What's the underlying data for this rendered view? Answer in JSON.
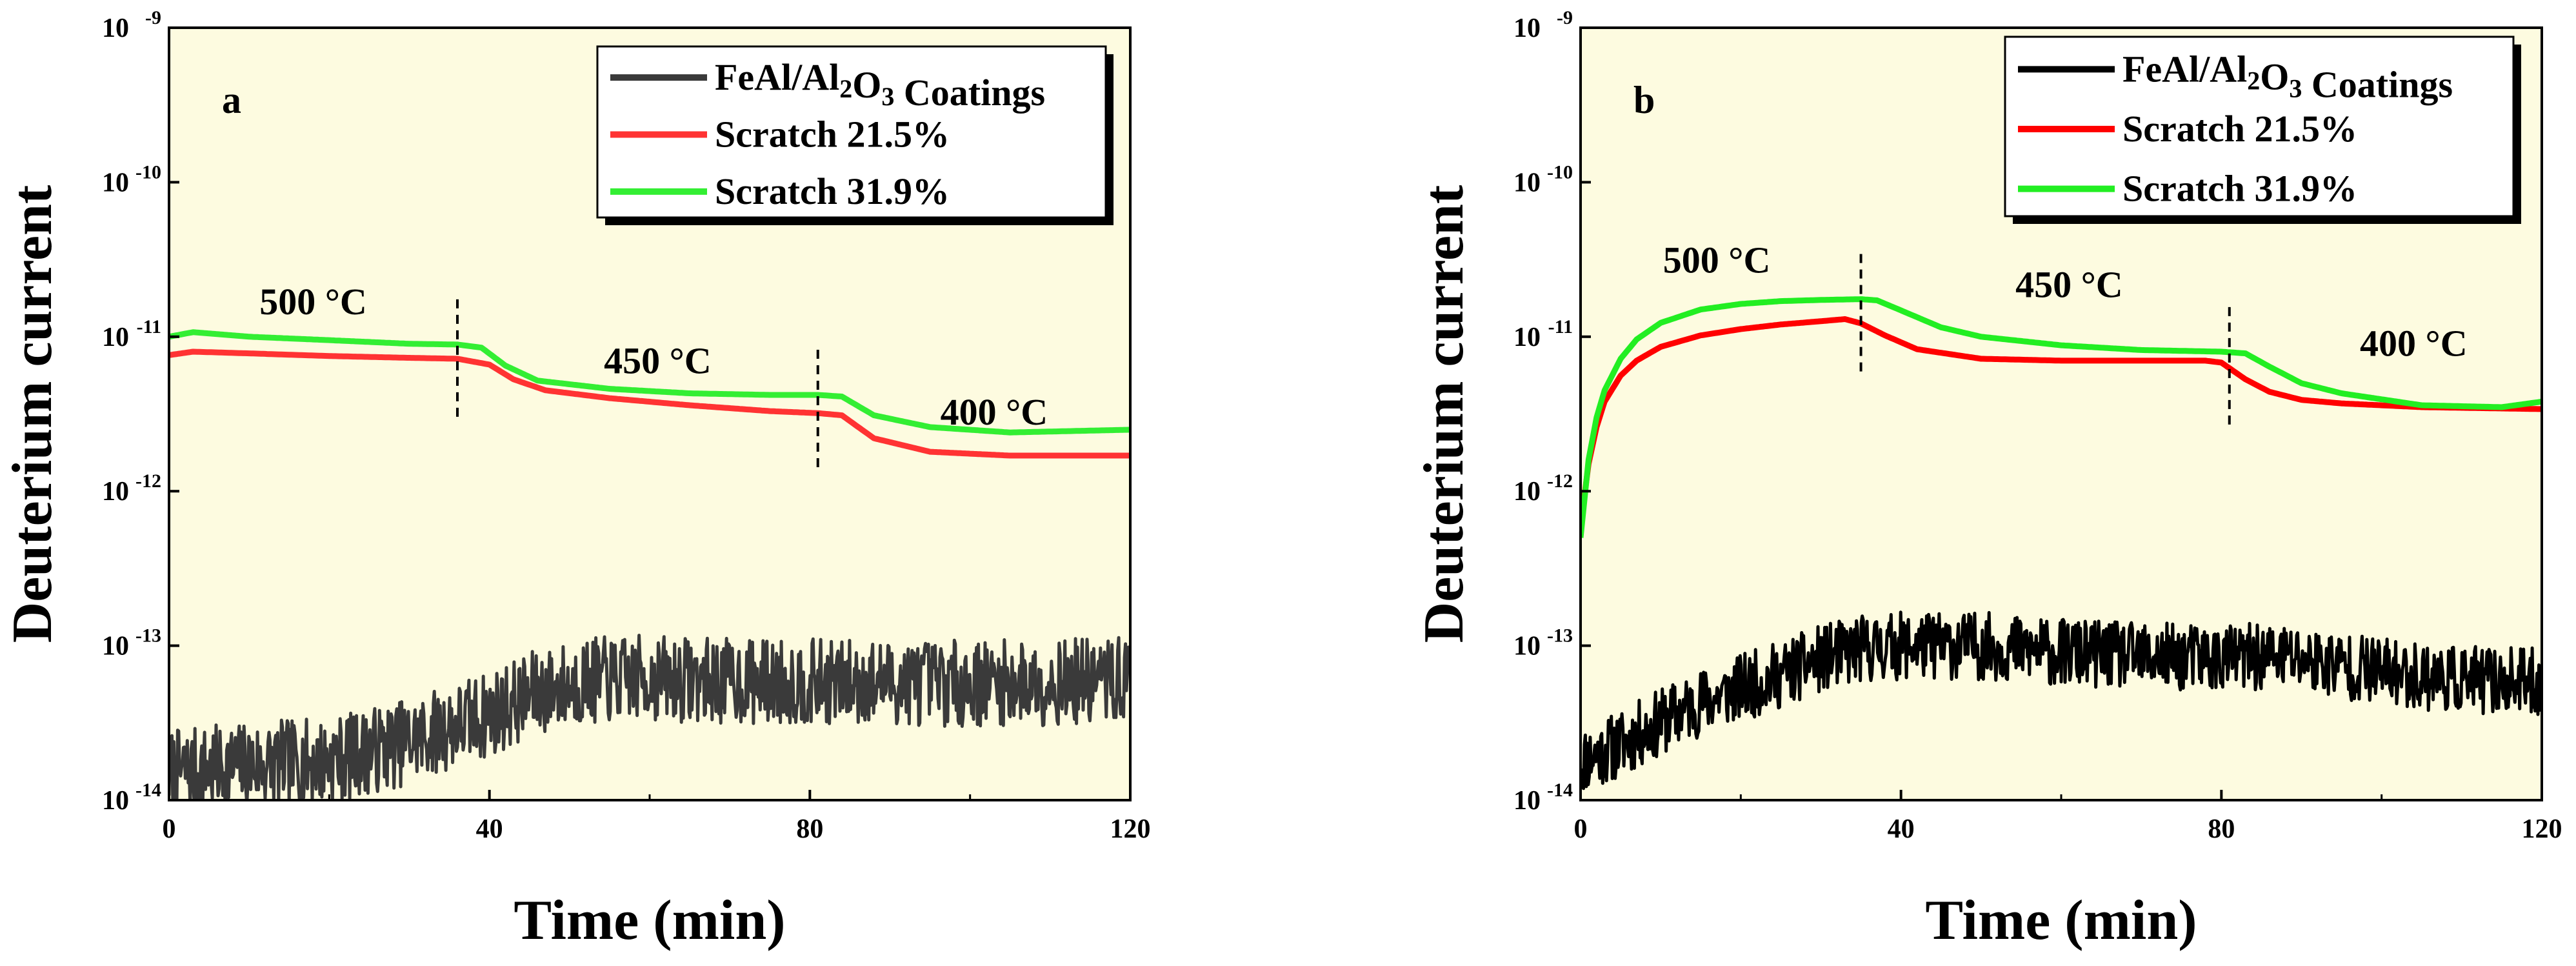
{
  "chart_data": [
    {
      "type": "line",
      "panel": "a",
      "xlabel": "Time (min)",
      "ylabel": "Deuterium current",
      "xlim": [
        0,
        120
      ],
      "ylim": [
        1e-14,
        1e-09
      ],
      "yscale": "log",
      "xticks": [
        "0",
        "40",
        "80",
        "120"
      ],
      "yticks": [
        {
          "base": "10",
          "exp": "-14"
        },
        {
          "base": "10",
          "exp": "-13"
        },
        {
          "base": "10",
          "exp": "-12"
        },
        {
          "base": "10",
          "exp": "-11"
        },
        {
          "base": "10",
          "exp": "-10"
        },
        {
          "base": "10",
          "exp": "-9"
        }
      ],
      "legend_position": "top-right",
      "legend": [
        {
          "name": "FeAl/Al2O3 Coatings",
          "color": "#3a3a3a"
        },
        {
          "name": "Scratch 21.5%",
          "color": "#ff3333"
        },
        {
          "name": "Scratch 31.9%",
          "color": "#33ee33"
        }
      ],
      "annotations": [
        {
          "text": "500 °C",
          "x": 18,
          "y": 1.4e-11
        },
        {
          "text": "450 °C",
          "x": 61,
          "y": 5.8e-12
        },
        {
          "text": "400 °C",
          "x": 103,
          "y": 2.7e-12
        }
      ],
      "dividers": [
        36,
        81
      ],
      "series": [
        {
          "name": "FeAl/Al2O3 Coatings",
          "color": "#3a3a3a",
          "noise": 0.28,
          "seed": 7,
          "x": [
            0,
            10,
            20,
            30,
            36,
            40,
            46,
            52,
            60,
            70,
            80,
            90,
            100,
            110,
            120
          ],
          "y": [
            1.5e-14,
            1.7e-14,
            1.8e-14,
            2.4e-14,
            3.1e-14,
            3.6e-14,
            5e-14,
            5.9e-14,
            6.2e-14,
            5.9e-14,
            5.8e-14,
            5.8e-14,
            5.7e-14,
            5.8e-14,
            6e-14
          ]
        },
        {
          "name": "Scratch 21.5%",
          "color": "#ff3333",
          "noise": 0,
          "seed": 1,
          "x": [
            0,
            3,
            10,
            20,
            30,
            36,
            40,
            43,
            47,
            55,
            65,
            75,
            81,
            84,
            88,
            95,
            105,
            120
          ],
          "y": [
            7.6e-12,
            8e-12,
            7.8e-12,
            7.5e-12,
            7.3e-12,
            7.2e-12,
            6.6e-12,
            5.3e-12,
            4.5e-12,
            4e-12,
            3.6e-12,
            3.3e-12,
            3.2e-12,
            3.1e-12,
            2.2e-12,
            1.8e-12,
            1.7e-12,
            1.7e-12
          ]
        },
        {
          "name": "Scratch 31.9%",
          "color": "#33ee33",
          "noise": 0,
          "seed": 2,
          "x": [
            0,
            3,
            10,
            20,
            30,
            36,
            39,
            42,
            46,
            55,
            65,
            75,
            81,
            84,
            88,
            95,
            105,
            120
          ],
          "y": [
            1e-11,
            1.07e-11,
            1e-11,
            9.5e-12,
            9e-12,
            8.9e-12,
            8.5e-12,
            6.5e-12,
            5.2e-12,
            4.6e-12,
            4.3e-12,
            4.2e-12,
            4.2e-12,
            4.1e-12,
            3.1e-12,
            2.6e-12,
            2.4e-12,
            2.5e-12
          ]
        }
      ]
    },
    {
      "type": "line",
      "panel": "b",
      "xlabel": "Time (min)",
      "ylabel": "Deuterium current",
      "xlim": [
        0,
        120
      ],
      "ylim": [
        1e-14,
        1e-09
      ],
      "yscale": "log",
      "xticks": [
        "0",
        "40",
        "80",
        "120"
      ],
      "yticks": [
        {
          "base": "10",
          "exp": "-14"
        },
        {
          "base": "10",
          "exp": "-13"
        },
        {
          "base": "10",
          "exp": "-12"
        },
        {
          "base": "10",
          "exp": "-11"
        },
        {
          "base": "10",
          "exp": "-10"
        },
        {
          "base": "10",
          "exp": "-9"
        }
      ],
      "legend_position": "top-right",
      "legend": [
        {
          "name": "FeAl/Al2O3 Coatings",
          "color": "#000000"
        },
        {
          "name": "Scratch 21.5%",
          "color": "#ff0000"
        },
        {
          "name": "Scratch 31.9%",
          "color": "#22ee22"
        }
      ],
      "annotations": [
        {
          "text": "500 °C",
          "x": 17,
          "y": 2.6e-11
        },
        {
          "text": "450 °C",
          "x": 61,
          "y": 1.8e-11
        },
        {
          "text": "400 °C",
          "x": 104,
          "y": 7.5e-12
        }
      ],
      "dividers": [
        35,
        81
      ],
      "series": [
        {
          "name": "FeAl/Al2O3 Coatings",
          "color": "#000000",
          "noise": 0.22,
          "seed": 11,
          "x": [
            0,
            5,
            10,
            15,
            20,
            25,
            30,
            35,
            40,
            45,
            50,
            60,
            70,
            80,
            88,
            95,
            100,
            110,
            120
          ],
          "y": [
            1.8e-14,
            2.3e-14,
            3.2e-14,
            4.3e-14,
            5.3e-14,
            6.5e-14,
            8.2e-14,
            9.5e-14,
            1e-13,
            1e-13,
            1e-13,
            9e-14,
            8.5e-14,
            8.3e-14,
            8.5e-14,
            7.5e-14,
            6.8e-14,
            6e-14,
            5.8e-14
          ]
        },
        {
          "name": "Scratch 21.5%",
          "color": "#ff0000",
          "noise": 0,
          "seed": 3,
          "x": [
            0,
            1,
            2,
            3,
            5,
            7,
            10,
            15,
            20,
            25,
            30,
            33,
            35,
            38,
            42,
            50,
            60,
            70,
            78,
            80,
            83,
            86,
            90,
            95,
            105,
            120
          ],
          "y": [
            6e-13,
            1.5e-12,
            2.6e-12,
            3.8e-12,
            5.6e-12,
            7e-12,
            8.6e-12,
            1.02e-11,
            1.12e-11,
            1.2e-11,
            1.26e-11,
            1.3e-11,
            1.22e-11,
            1.02e-11,
            8.3e-12,
            7.2e-12,
            7e-12,
            7e-12,
            7e-12,
            6.8e-12,
            5.3e-12,
            4.4e-12,
            3.9e-12,
            3.7e-12,
            3.5e-12,
            3.4e-12
          ]
        },
        {
          "name": "Scratch 31.9%",
          "color": "#22ee22",
          "noise": 0,
          "seed": 4,
          "x": [
            0,
            1,
            2,
            3,
            5,
            7,
            10,
            15,
            20,
            25,
            30,
            35,
            37,
            40,
            45,
            50,
            60,
            70,
            80,
            83,
            86,
            90,
            95,
            105,
            115,
            120
          ],
          "y": [
            5e-13,
            1.6e-12,
            3e-12,
            4.5e-12,
            7.2e-12,
            9.6e-12,
            1.23e-11,
            1.5e-11,
            1.63e-11,
            1.7e-11,
            1.73e-11,
            1.75e-11,
            1.72e-11,
            1.48e-11,
            1.15e-11,
            1e-11,
            8.8e-12,
            8.2e-12,
            8e-12,
            7.8e-12,
            6.4e-12,
            5e-12,
            4.3e-12,
            3.6e-12,
            3.5e-12,
            3.8e-12
          ]
        }
      ]
    }
  ]
}
